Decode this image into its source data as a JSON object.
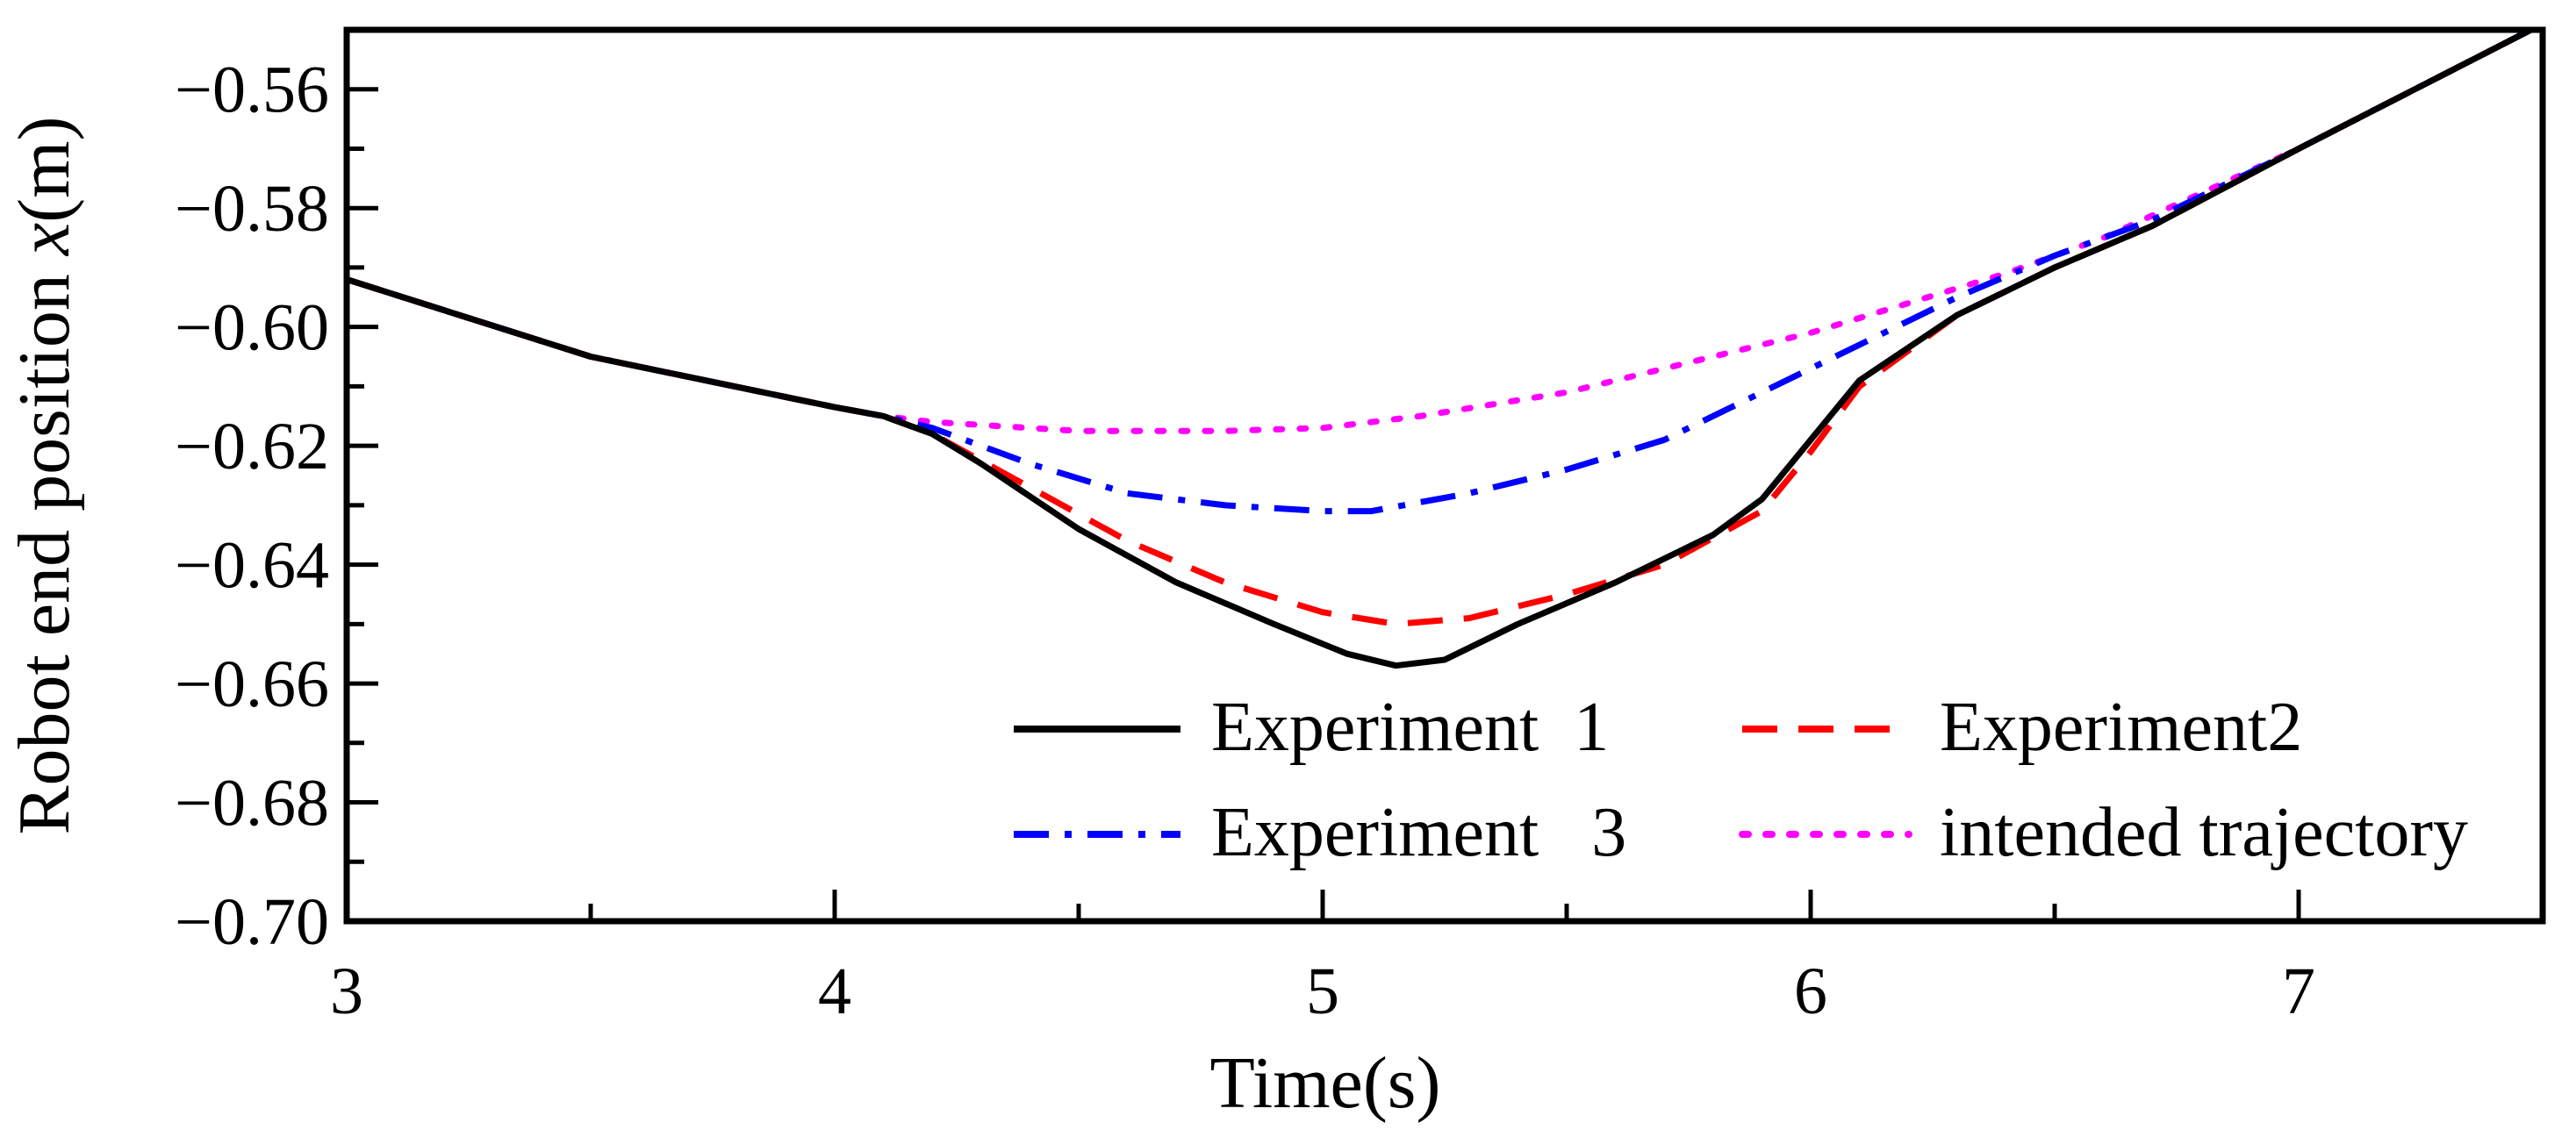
{
  "chart_data": {
    "type": "line",
    "title": "",
    "xlabel": "Time(s)",
    "ylabel_prefix": "Robot end position ",
    "ylabel_var": "x",
    "ylabel_suffix": "(m)",
    "xlim": [
      3,
      7.5
    ],
    "ylim": [
      -0.7,
      -0.55
    ],
    "xticks": [
      3,
      4,
      5,
      6,
      7
    ],
    "xtick_labels": [
      "3",
      "4",
      "5",
      "6",
      "7"
    ],
    "yticks": [
      -0.56,
      -0.58,
      -0.6,
      -0.62,
      -0.64,
      -0.66,
      -0.68,
      -0.7
    ],
    "ytick_labels": [
      "−0.56",
      "−0.58",
      "−0.60",
      "−0.62",
      "−0.64",
      "−0.66",
      "−0.68",
      "−0.70"
    ],
    "grid": false,
    "legend_position": "bottom-right",
    "series": [
      {
        "name": "Experiment  1",
        "color": "#000000",
        "style": "solid",
        "x": [
          3,
          3.5,
          4,
          4.1,
          4.2,
          4.3,
          4.5,
          4.7,
          4.9,
          5.05,
          5.15,
          5.25,
          5.4,
          5.6,
          5.8,
          5.9,
          6.0,
          6.1,
          6.3,
          6.5,
          6.7,
          7.0,
          7.5
        ],
        "y": [
          -0.592,
          -0.605,
          -0.6135,
          -0.615,
          -0.618,
          -0.623,
          -0.634,
          -0.643,
          -0.65,
          -0.655,
          -0.657,
          -0.656,
          -0.65,
          -0.643,
          -0.635,
          -0.629,
          -0.619,
          -0.609,
          -0.598,
          -0.59,
          -0.583,
          -0.57,
          -0.549
        ]
      },
      {
        "name": "Experiment2",
        "color": "#ff0000",
        "style": "dashed",
        "x": [
          3,
          3.5,
          4,
          4.1,
          4.2,
          4.4,
          4.6,
          4.8,
          5.0,
          5.15,
          5.3,
          5.5,
          5.7,
          5.9,
          6.0,
          6.1,
          6.3,
          6.5,
          6.7,
          7.0,
          7.5
        ],
        "y": [
          -0.592,
          -0.605,
          -0.6135,
          -0.615,
          -0.618,
          -0.627,
          -0.636,
          -0.643,
          -0.648,
          -0.65,
          -0.649,
          -0.645,
          -0.64,
          -0.631,
          -0.621,
          -0.61,
          -0.598,
          -0.59,
          -0.583,
          -0.57,
          -0.549
        ]
      },
      {
        "name": "Experiment   3",
        "color": "#0000ff",
        "style": "dashdot",
        "x": [
          3,
          3.5,
          4,
          4.1,
          4.2,
          4.4,
          4.6,
          4.8,
          5.0,
          5.1,
          5.3,
          5.5,
          5.7,
          5.9,
          6.1,
          6.3,
          6.5,
          6.7,
          7.0,
          7.5
        ],
        "y": [
          -0.592,
          -0.605,
          -0.6135,
          -0.615,
          -0.617,
          -0.623,
          -0.628,
          -0.63,
          -0.631,
          -0.631,
          -0.628,
          -0.624,
          -0.619,
          -0.611,
          -0.603,
          -0.595,
          -0.588,
          -0.582,
          -0.57,
          -0.549
        ]
      },
      {
        "name": "intended trajectory",
        "color": "#ff00ff",
        "style": "dotted",
        "x": [
          3,
          3.5,
          4,
          4.1,
          4.2,
          4.5,
          4.8,
          5.0,
          5.2,
          5.5,
          5.8,
          6.0,
          6.2,
          6.4,
          6.6,
          7.0,
          7.5
        ],
        "y": [
          -0.592,
          -0.605,
          -0.6135,
          -0.615,
          -0.616,
          -0.6175,
          -0.6175,
          -0.617,
          -0.615,
          -0.611,
          -0.605,
          -0.601,
          -0.596,
          -0.591,
          -0.585,
          -0.57,
          -0.549
        ]
      }
    ]
  }
}
